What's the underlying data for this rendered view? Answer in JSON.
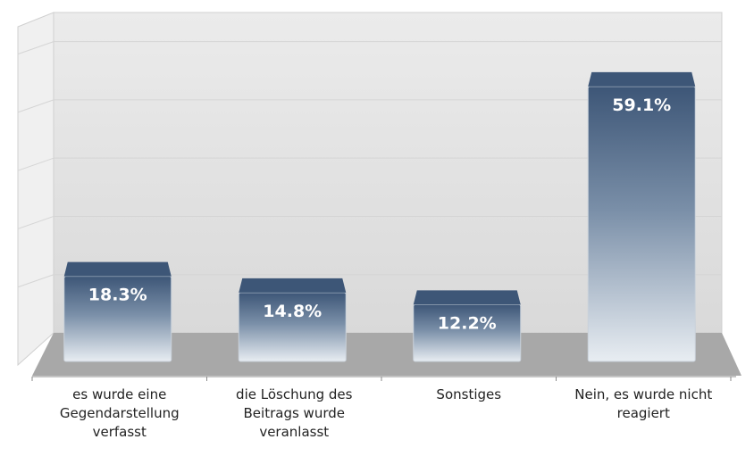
{
  "chart_data": {
    "type": "bar",
    "title": "",
    "xlabel": "",
    "ylabel": "",
    "categories": [
      "es wurde eine\nGegendarstellung\nverfasst",
      "die Löschung des\nBeitrags wurde\nveranlasst",
      "Sonstiges",
      "Nein, es wurde nicht\nreagiert"
    ],
    "values": [
      18.3,
      14.8,
      12.2,
      59.1
    ],
    "value_labels": [
      "18.3%",
      "14.8%",
      "12.2%",
      "59.1%"
    ],
    "ylim": [
      0,
      70
    ],
    "grid": true,
    "legend": "none",
    "style": "3d-column",
    "colors": {
      "bar_top": "#3d5677",
      "bar_mid": "#7a8fa8",
      "bar_bottom": "#e8edf2",
      "wall": "#e2e2e2",
      "floor": "#a8a8a8"
    }
  }
}
